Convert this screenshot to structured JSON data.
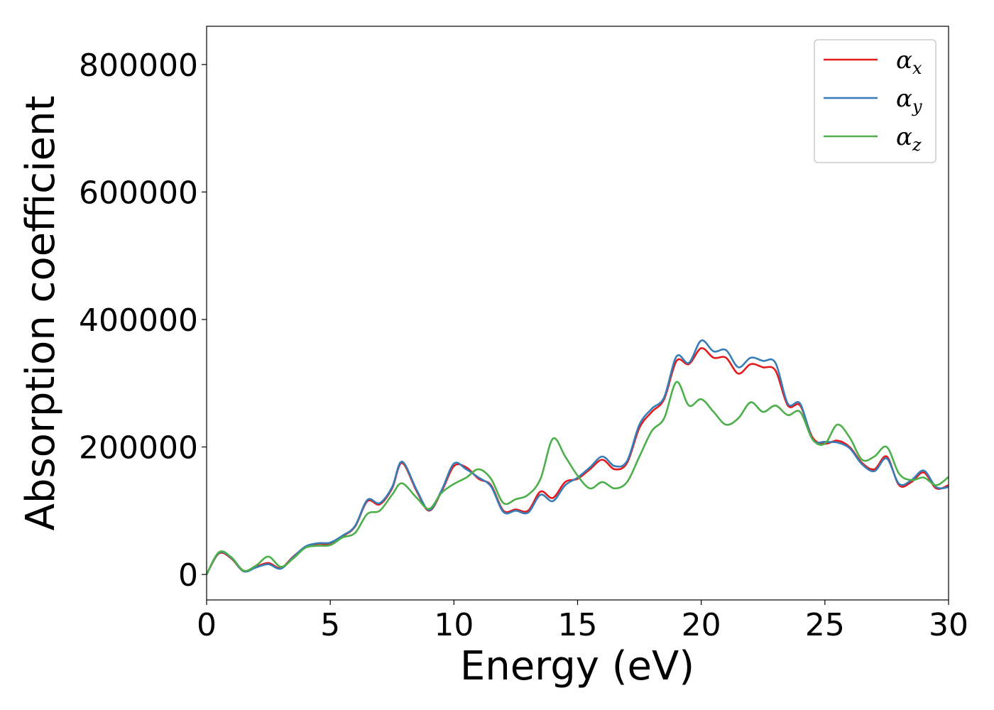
{
  "chart_data": {
    "type": "line",
    "xlabel": "Energy (eV)",
    "ylabel": "Absorption coefficient",
    "xlim": [
      0,
      30
    ],
    "ylim": [
      -40000,
      860000
    ],
    "x_ticks": [
      0,
      5,
      10,
      15,
      20,
      25,
      30
    ],
    "y_ticks": [
      0,
      200000,
      400000,
      600000,
      800000
    ],
    "x_tick_labels": [
      "0",
      "5",
      "10",
      "15",
      "20",
      "25",
      "30"
    ],
    "y_tick_labels": [
      "0",
      "200000",
      "400000",
      "600000",
      "800000"
    ],
    "grid": false,
    "legend_position": "top-right",
    "series": [
      {
        "name": "α_x",
        "label_main": "α",
        "label_sub": "x",
        "color": "#e41a1c",
        "x": [
          0,
          0.5,
          1.0,
          1.5,
          2.0,
          2.5,
          3.0,
          3.5,
          4.0,
          4.5,
          5.0,
          5.5,
          6.0,
          6.5,
          7.0,
          7.5,
          7.9,
          8.5,
          9.0,
          9.5,
          10.0,
          10.5,
          11.0,
          11.5,
          12.0,
          12.5,
          13.0,
          13.5,
          14.0,
          14.5,
          15.0,
          15.5,
          16.0,
          16.5,
          17.0,
          17.5,
          18.0,
          18.5,
          19.0,
          19.5,
          20.0,
          20.5,
          21.0,
          21.5,
          22.0,
          22.5,
          23.0,
          23.5,
          24.0,
          24.5,
          25.0,
          25.5,
          26.0,
          26.5,
          27.0,
          27.5,
          28.0,
          28.5,
          29.0,
          29.5,
          30.0
        ],
        "y": [
          0,
          33000,
          25000,
          5000,
          12000,
          18000,
          10000,
          28000,
          43000,
          48000,
          48000,
          60000,
          75000,
          115000,
          110000,
          135000,
          175000,
          130000,
          100000,
          130000,
          170000,
          168000,
          150000,
          140000,
          100000,
          102000,
          100000,
          130000,
          120000,
          145000,
          150000,
          165000,
          180000,
          165000,
          175000,
          230000,
          255000,
          275000,
          335000,
          330000,
          355000,
          340000,
          340000,
          315000,
          330000,
          325000,
          320000,
          265000,
          265000,
          215000,
          205000,
          210000,
          200000,
          175000,
          165000,
          185000,
          140000,
          145000,
          160000,
          135000,
          140000
        ]
      },
      {
        "name": "α_y",
        "label_main": "α",
        "label_sub": "y",
        "color": "#377eb8",
        "x": [
          0,
          0.5,
          1.0,
          1.5,
          2.0,
          2.5,
          3.0,
          3.5,
          4.0,
          4.5,
          5.0,
          5.5,
          6.0,
          6.5,
          7.0,
          7.5,
          7.9,
          8.5,
          9.0,
          9.5,
          10.0,
          10.5,
          11.0,
          11.5,
          12.0,
          12.5,
          13.0,
          13.5,
          14.0,
          14.5,
          15.0,
          15.5,
          16.0,
          16.5,
          17.0,
          17.5,
          18.0,
          18.5,
          19.0,
          19.5,
          20.0,
          20.5,
          21.0,
          21.5,
          22.0,
          22.5,
          23.0,
          23.5,
          24.0,
          24.5,
          25.0,
          25.5,
          26.0,
          26.5,
          27.0,
          27.5,
          28.0,
          28.5,
          29.0,
          29.5,
          30.0
        ],
        "y": [
          0,
          34000,
          26000,
          5000,
          11000,
          16000,
          9000,
          27000,
          44000,
          49000,
          50000,
          61000,
          76000,
          117000,
          112000,
          137000,
          177000,
          132000,
          101000,
          132000,
          174000,
          165000,
          152000,
          138000,
          98000,
          100000,
          97000,
          125000,
          115000,
          140000,
          152000,
          168000,
          185000,
          170000,
          178000,
          235000,
          260000,
          278000,
          342000,
          332000,
          367000,
          350000,
          352000,
          325000,
          340000,
          335000,
          332000,
          268000,
          268000,
          212000,
          208000,
          207000,
          198000,
          173000,
          162000,
          182000,
          142000,
          148000,
          163000,
          137000,
          137000
        ]
      },
      {
        "name": "α_z",
        "label_main": "α",
        "label_sub": "z",
        "color": "#4daf4a",
        "x": [
          0,
          0.5,
          1.0,
          1.5,
          2.0,
          2.5,
          3.0,
          3.5,
          4.0,
          4.5,
          5.0,
          5.5,
          6.0,
          6.5,
          7.0,
          7.5,
          7.9,
          8.5,
          9.0,
          9.5,
          10.0,
          10.5,
          11.0,
          11.5,
          12.0,
          12.5,
          13.0,
          13.5,
          14.0,
          14.5,
          15.0,
          15.5,
          16.0,
          16.5,
          17.0,
          17.5,
          18.0,
          18.5,
          19.0,
          19.5,
          20.0,
          20.5,
          21.0,
          21.5,
          22.0,
          22.5,
          23.0,
          23.5,
          24.0,
          24.5,
          25.0,
          25.5,
          26.0,
          26.5,
          27.0,
          27.5,
          28.0,
          28.5,
          29.0,
          29.5,
          30.0
        ],
        "y": [
          0,
          35000,
          27000,
          6000,
          14000,
          28000,
          12000,
          25000,
          42000,
          45000,
          46000,
          58000,
          65000,
          95000,
          100000,
          125000,
          143000,
          120000,
          103000,
          128000,
          142000,
          152000,
          165000,
          150000,
          112000,
          118000,
          125000,
          150000,
          213000,
          185000,
          155000,
          135000,
          145000,
          135000,
          145000,
          185000,
          225000,
          245000,
          302000,
          265000,
          275000,
          255000,
          235000,
          245000,
          270000,
          255000,
          265000,
          250000,
          255000,
          212000,
          205000,
          235000,
          215000,
          180000,
          185000,
          200000,
          158000,
          148000,
          152000,
          140000,
          153000
        ]
      }
    ]
  }
}
